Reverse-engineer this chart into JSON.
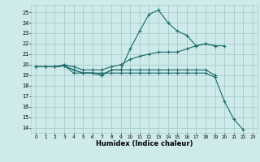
{
  "title": "",
  "xlabel": "Humidex (Indice chaleur)",
  "bg_color": "#ceeaea",
  "grid_color": "#aacccc",
  "line_color": "#1a6a6a",
  "x_ticks": [
    0,
    1,
    2,
    3,
    4,
    5,
    6,
    7,
    8,
    9,
    10,
    11,
    12,
    13,
    14,
    15,
    16,
    17,
    18,
    19,
    20,
    21,
    22,
    23
  ],
  "y_ticks": [
    14,
    15,
    16,
    17,
    18,
    19,
    20,
    21,
    22,
    23,
    24,
    25
  ],
  "xlim": [
    -0.5,
    23.5
  ],
  "ylim": [
    13.5,
    25.7
  ],
  "series": [
    [
      19.8,
      19.8,
      19.8,
      19.9,
      19.2,
      19.2,
      19.2,
      19.0,
      19.5,
      19.5,
      21.5,
      23.2,
      24.8,
      25.2,
      24.0,
      23.2,
      22.8,
      21.8,
      22.0,
      21.8,
      null,
      null,
      null,
      null
    ],
    [
      19.8,
      19.8,
      19.8,
      20.0,
      19.8,
      19.5,
      19.5,
      19.5,
      19.8,
      20.0,
      20.5,
      20.8,
      21.0,
      21.2,
      21.2,
      21.2,
      21.5,
      21.8,
      22.0,
      21.8,
      21.8,
      null,
      null,
      null
    ],
    [
      19.8,
      19.8,
      19.8,
      19.9,
      19.5,
      19.2,
      19.2,
      19.0,
      19.5,
      19.5,
      19.5,
      19.5,
      19.5,
      19.5,
      19.5,
      19.5,
      19.5,
      19.5,
      19.5,
      19.0,
      null,
      null,
      null,
      null
    ],
    [
      19.8,
      19.8,
      19.8,
      19.9,
      19.5,
      19.2,
      19.2,
      19.2,
      19.2,
      19.2,
      19.2,
      19.2,
      19.2,
      19.2,
      19.2,
      19.2,
      19.2,
      19.2,
      19.2,
      18.8,
      16.5,
      14.8,
      13.8,
      null
    ]
  ]
}
